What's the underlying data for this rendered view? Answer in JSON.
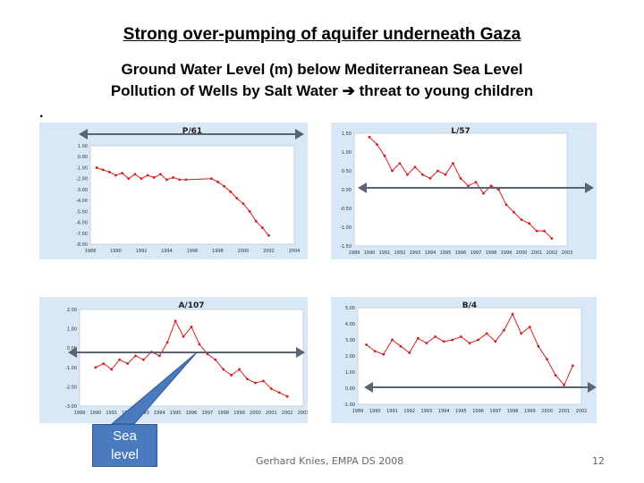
{
  "slide": {
    "title": "Strong over-pumping of aquifer underneath Gaza",
    "subtitle1": "Ground Water Level (m)  below Mediterranean Sea Level",
    "subtitle2_a": "Pollution of Wells by Salt Water ",
    "subtitle2_b": " threat to young children",
    "bullet": ".",
    "callout": [
      "Sea",
      "level"
    ],
    "footer": "Gerhard Knies, EMPA DS 2008",
    "page": "12"
  },
  "colors": {
    "panel_bg": "#d8e8f6",
    "plot_bg": "#ffffff",
    "series": "#d42020",
    "arrow": "#5a6572",
    "callout": "#4a7bbf"
  },
  "chart_data": [
    {
      "type": "line",
      "title": "P/61",
      "ytick_labels": [
        "1.00",
        "0.00",
        "-1.00",
        "-2.00",
        "-3.00",
        "-4.00",
        "-5.00",
        "-6.00",
        "-7.00",
        "-8.00"
      ],
      "ytick_values": [
        1,
        0,
        -1,
        -2,
        -3,
        -4,
        -5,
        -6,
        -7,
        -8
      ],
      "xtick_labels": [
        "1988",
        "1990",
        "1992",
        "1994",
        "1996",
        "1998",
        "2000",
        "2002",
        "2004"
      ],
      "xtick_values": [
        1988,
        1990,
        1992,
        1994,
        1996,
        1998,
        2000,
        2002,
        2004
      ],
      "xlim": [
        1988,
        2004
      ],
      "ylim": [
        -8,
        1
      ],
      "sea_level_y": 1,
      "gap": [
        1995.5,
        1997.5
      ],
      "x": [
        1988.5,
        1989,
        1989.5,
        1990,
        1990.5,
        1991,
        1991.5,
        1992,
        1992.5,
        1993,
        1993.5,
        1994,
        1994.5,
        1995,
        1995.5,
        1997.5,
        1998,
        1998.5,
        1999,
        1999.5,
        2000,
        2000.5,
        2001,
        2001.5,
        2002
      ],
      "y": [
        -1.0,
        -1.2,
        -1.4,
        -1.7,
        -1.5,
        -2.0,
        -1.6,
        -2.0,
        -1.7,
        -1.9,
        -1.6,
        -2.1,
        -1.9,
        -2.1,
        -2.1,
        -2.0,
        -2.3,
        -2.7,
        -3.2,
        -3.8,
        -4.3,
        -5.0,
        -5.9,
        -6.5,
        -7.2
      ]
    },
    {
      "type": "line",
      "title": "L/57",
      "ytick_labels": [
        "1.50",
        "1.00",
        "0.50",
        "0.00",
        "-0.50",
        "-1.00",
        "-1.50"
      ],
      "ytick_values": [
        1.5,
        1,
        0.5,
        0,
        -0.5,
        -1,
        -1.5
      ],
      "xtick_labels": [
        "1989",
        "1990",
        "1991",
        "1992",
        "1993",
        "1994",
        "1995",
        "1996",
        "1997",
        "1998",
        "1999",
        "2000",
        "2001",
        "2002",
        "2003"
      ],
      "xtick_values": [
        1989,
        1990,
        1991,
        1992,
        1993,
        1994,
        1995,
        1996,
        1997,
        1998,
        1999,
        2000,
        2001,
        2002,
        2003
      ],
      "xlim": [
        1989,
        2003
      ],
      "ylim": [
        -1.5,
        1.5
      ],
      "sea_level_y": 0,
      "gap": null,
      "x": [
        1990,
        1990.5,
        1991,
        1991.5,
        1992,
        1992.5,
        1993,
        1993.5,
        1994,
        1994.5,
        1995,
        1995.5,
        1996,
        1996.5,
        1997,
        1997.5,
        1998,
        1998.5,
        1999,
        1999.5,
        2000,
        2000.5,
        2001,
        2001.5,
        2002
      ],
      "y": [
        1.4,
        1.2,
        0.9,
        0.5,
        0.7,
        0.4,
        0.6,
        0.4,
        0.3,
        0.5,
        0.4,
        0.7,
        0.3,
        0.1,
        0.2,
        -0.1,
        0.1,
        0.0,
        -0.4,
        -0.6,
        -0.8,
        -0.9,
        -1.1,
        -1.1,
        -1.3
      ]
    },
    {
      "type": "line",
      "title": "A/107",
      "ytick_labels": [
        "2.00",
        "1.00",
        "0.00",
        "-1.00",
        "-2.00",
        "-3.00"
      ],
      "ytick_values": [
        2,
        1,
        0,
        -1,
        -2,
        -3
      ],
      "xtick_labels": [
        "1989",
        "1990",
        "1991",
        "1992",
        "1993",
        "1994",
        "1995",
        "1996",
        "1997",
        "1998",
        "1999",
        "2000",
        "2001",
        "2002",
        "2003"
      ],
      "xtick_values": [
        1989,
        1990,
        1991,
        1992,
        1993,
        1994,
        1995,
        1996,
        1997,
        1998,
        1999,
        2000,
        2001,
        2002,
        2003
      ],
      "xlim": [
        1989,
        2003
      ],
      "ylim": [
        -3,
        2
      ],
      "sea_level_y": 0,
      "gap": null,
      "x": [
        1990,
        1990.5,
        1991,
        1991.5,
        1992,
        1992.5,
        1993,
        1993.5,
        1994,
        1994.5,
        1995,
        1995.5,
        1996,
        1996.5,
        1997,
        1997.5,
        1998,
        1998.5,
        1999,
        1999.5,
        2000,
        2000.5,
        2001,
        2001.5,
        2002
      ],
      "y": [
        -1.0,
        -0.8,
        -1.1,
        -0.6,
        -0.8,
        -0.4,
        -0.6,
        -0.2,
        -0.4,
        0.3,
        1.4,
        0.6,
        1.1,
        0.2,
        -0.3,
        -0.6,
        -1.1,
        -1.4,
        -1.1,
        -1.6,
        -1.8,
        -1.7,
        -2.1,
        -2.3,
        -2.5
      ]
    },
    {
      "type": "line",
      "title": "B/4",
      "ytick_labels": [
        "5.00",
        "4.00",
        "3.00",
        "2.00",
        "1.00",
        "0.00",
        "-1.00"
      ],
      "ytick_values": [
        5,
        4,
        3,
        2,
        1,
        0,
        -1
      ],
      "xtick_labels": [
        "1989",
        "1990",
        "1991",
        "1992",
        "1993",
        "1994",
        "1995",
        "1996",
        "1997",
        "1998",
        "1999",
        "2000",
        "2001",
        "2002"
      ],
      "xtick_values": [
        1989,
        1990,
        1991,
        1992,
        1993,
        1994,
        1995,
        1996,
        1997,
        1998,
        1999,
        2000,
        2001,
        2002
      ],
      "xlim": [
        1989,
        2002
      ],
      "ylim": [
        -1,
        5
      ],
      "sea_level_y": 0,
      "gap": null,
      "x": [
        1989.5,
        1990,
        1990.5,
        1991,
        1991.5,
        1992,
        1992.5,
        1993,
        1993.5,
        1994,
        1994.5,
        1995,
        1995.5,
        1996,
        1996.5,
        1997,
        1997.5,
        1998,
        1998.5,
        1999,
        1999.5,
        2000,
        2000.5,
        2001,
        2001.5
      ],
      "y": [
        2.7,
        2.3,
        2.1,
        3.0,
        2.6,
        2.2,
        3.1,
        2.8,
        3.2,
        2.9,
        3.0,
        3.2,
        2.8,
        3.0,
        3.4,
        2.9,
        3.6,
        4.6,
        3.4,
        3.8,
        2.6,
        1.8,
        0.8,
        0.2,
        1.4
      ]
    }
  ]
}
